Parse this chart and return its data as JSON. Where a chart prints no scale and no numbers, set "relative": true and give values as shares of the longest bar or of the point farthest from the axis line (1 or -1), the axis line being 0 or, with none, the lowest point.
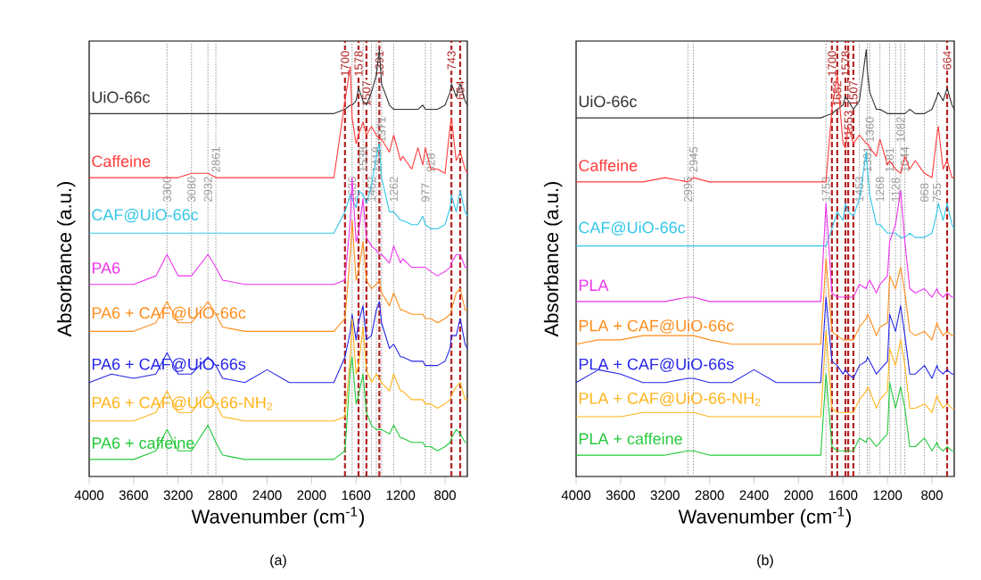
{
  "chart_data": [
    {
      "type": "line",
      "relative": true,
      "xlabel": "Wavenumber (cm$^{-1}$)",
      "ylabel": "Absorbance (a.u.)",
      "xlim": [
        4000,
        600
      ],
      "xticks": [
        4000,
        3600,
        3200,
        2800,
        2400,
        2000,
        1600,
        1200,
        800
      ],
      "x": [
        4000,
        3800,
        3600,
        3400,
        3300,
        3200,
        3080,
        2932,
        2861,
        2800,
        2600,
        2400,
        2200,
        2000,
        1800,
        1700,
        1652,
        1636,
        1600,
        1578,
        1538,
        1507,
        1462,
        1418,
        1391,
        1371,
        1300,
        1262,
        1200,
        1181,
        1100,
        1044,
        1000,
        977,
        928,
        868,
        800,
        755,
        743,
        700,
        664,
        620,
        600
      ],
      "series": [
        {
          "name": "UiO-66c",
          "color": "#333333",
          "values": [
            0.85,
            0.85,
            0.85,
            0.85,
            0.85,
            0.85,
            0.85,
            0.85,
            0.85,
            0.85,
            0.85,
            0.85,
            0.85,
            0.85,
            0.85,
            0.86,
            0.87,
            0.87,
            0.88,
            0.91,
            0.88,
            0.87,
            0.9,
            0.94,
            1.0,
            0.92,
            0.87,
            0.86,
            0.86,
            0.86,
            0.86,
            0.86,
            0.87,
            0.86,
            0.86,
            0.86,
            0.87,
            0.9,
            0.92,
            0.89,
            0.92,
            0.88,
            0.87
          ]
        },
        {
          "name": "Caffeine",
          "color": "#ff3b3b",
          "values": [
            0.7,
            0.7,
            0.7,
            0.7,
            0.7,
            0.7,
            0.71,
            0.71,
            0.7,
            0.7,
            0.7,
            0.7,
            0.7,
            0.7,
            0.7,
            0.88,
            0.96,
            0.84,
            0.78,
            0.8,
            0.83,
            0.8,
            0.82,
            0.8,
            0.79,
            0.79,
            0.76,
            0.8,
            0.74,
            0.75,
            0.72,
            0.77,
            0.73,
            0.77,
            0.72,
            0.72,
            0.71,
            0.82,
            0.84,
            0.74,
            0.76,
            0.72,
            0.71
          ]
        },
        {
          "name": "CAF@UiO-66c",
          "color": "#33c6e8",
          "values": [
            0.57,
            0.57,
            0.57,
            0.57,
            0.57,
            0.57,
            0.57,
            0.57,
            0.57,
            0.57,
            0.57,
            0.57,
            0.57,
            0.57,
            0.57,
            0.62,
            0.66,
            0.65,
            0.63,
            0.67,
            0.66,
            0.64,
            0.68,
            0.75,
            0.78,
            0.7,
            0.62,
            0.62,
            0.6,
            0.6,
            0.59,
            0.59,
            0.61,
            0.59,
            0.58,
            0.58,
            0.59,
            0.63,
            0.66,
            0.62,
            0.67,
            0.62,
            0.61
          ]
        },
        {
          "name": "PA6",
          "color": "#ee33ee",
          "values": [
            0.45,
            0.45,
            0.45,
            0.47,
            0.52,
            0.47,
            0.47,
            0.52,
            0.49,
            0.46,
            0.45,
            0.45,
            0.45,
            0.45,
            0.45,
            0.46,
            0.6,
            0.7,
            0.55,
            0.57,
            0.65,
            0.56,
            0.54,
            0.53,
            0.52,
            0.52,
            0.5,
            0.54,
            0.5,
            0.51,
            0.49,
            0.49,
            0.49,
            0.49,
            0.48,
            0.47,
            0.48,
            0.49,
            0.5,
            0.52,
            0.52,
            0.49,
            0.49
          ]
        },
        {
          "name": "PA6 + CAF@UiO-66c",
          "color": "#ff8c1a",
          "values": [
            0.34,
            0.34,
            0.34,
            0.36,
            0.41,
            0.36,
            0.36,
            0.41,
            0.38,
            0.35,
            0.34,
            0.34,
            0.34,
            0.34,
            0.34,
            0.37,
            0.52,
            0.6,
            0.46,
            0.48,
            0.55,
            0.46,
            0.44,
            0.45,
            0.46,
            0.43,
            0.4,
            0.43,
            0.39,
            0.39,
            0.38,
            0.38,
            0.38,
            0.37,
            0.37,
            0.36,
            0.37,
            0.38,
            0.39,
            0.43,
            0.44,
            0.39,
            0.39
          ]
        },
        {
          "name": "PA6 + CAF@UiO-66s",
          "color": "#2626e8",
          "values": [
            0.22,
            0.24,
            0.23,
            0.24,
            0.29,
            0.24,
            0.24,
            0.28,
            0.26,
            0.23,
            0.22,
            0.25,
            0.22,
            0.22,
            0.22,
            0.28,
            0.34,
            0.38,
            0.32,
            0.36,
            0.4,
            0.32,
            0.33,
            0.39,
            0.41,
            0.36,
            0.3,
            0.31,
            0.28,
            0.28,
            0.27,
            0.27,
            0.27,
            0.26,
            0.26,
            0.26,
            0.27,
            0.3,
            0.33,
            0.33,
            0.37,
            0.31,
            0.3
          ]
        },
        {
          "name": "PA6 + CAF@UiO-66-NH$_{2}$",
          "color": "#ffb319",
          "values": [
            0.13,
            0.13,
            0.13,
            0.15,
            0.2,
            0.15,
            0.15,
            0.2,
            0.17,
            0.14,
            0.13,
            0.13,
            0.13,
            0.13,
            0.13,
            0.14,
            0.28,
            0.37,
            0.24,
            0.26,
            0.35,
            0.25,
            0.22,
            0.24,
            0.23,
            0.22,
            0.2,
            0.24,
            0.2,
            0.2,
            0.18,
            0.18,
            0.18,
            0.17,
            0.17,
            0.16,
            0.17,
            0.18,
            0.19,
            0.21,
            0.22,
            0.18,
            0.18
          ]
        },
        {
          "name": "PA6 + caffeine",
          "color": "#22c93a",
          "values": [
            0.04,
            0.04,
            0.04,
            0.06,
            0.11,
            0.06,
            0.06,
            0.12,
            0.08,
            0.05,
            0.04,
            0.04,
            0.04,
            0.04,
            0.04,
            0.06,
            0.25,
            0.28,
            0.17,
            0.19,
            0.24,
            0.15,
            0.12,
            0.11,
            0.11,
            0.11,
            0.1,
            0.12,
            0.09,
            0.09,
            0.08,
            0.08,
            0.08,
            0.07,
            0.07,
            0.06,
            0.07,
            0.08,
            0.09,
            0.11,
            0.1,
            0.08,
            0.08
          ]
        }
      ],
      "ref_lines": [
        {
          "axis": "x",
          "value": 1700,
          "label": "1700",
          "color": "#b22222",
          "line_style": "dashed"
        },
        {
          "axis": "x",
          "value": 1578,
          "label": "1578",
          "color": "#b22222",
          "line_style": "dashed"
        },
        {
          "axis": "x",
          "value": 1507,
          "label": "1507",
          "color": "#b22222",
          "line_style": "dashed"
        },
        {
          "axis": "x",
          "value": 1391,
          "label": "1391",
          "color": "#b22222",
          "line_style": "dashed"
        },
        {
          "axis": "x",
          "value": 743,
          "label": "743",
          "color": "#b22222",
          "line_style": "dashed"
        },
        {
          "axis": "x",
          "value": 664,
          "label": "664",
          "color": "#b22222",
          "line_style": "dashed"
        },
        {
          "axis": "x",
          "value": 3300,
          "label": "3300",
          "color": "#9a9a9a",
          "line_style": "dotted"
        },
        {
          "axis": "x",
          "value": 3080,
          "label": "3080",
          "color": "#9a9a9a",
          "line_style": "dotted"
        },
        {
          "axis": "x",
          "value": 2932,
          "label": "2932",
          "color": "#9a9a9a",
          "line_style": "dotted"
        },
        {
          "axis": "x",
          "value": 2861,
          "label": "2861",
          "color": "#9a9a9a",
          "line_style": "dotted"
        },
        {
          "axis": "x",
          "value": 1636,
          "label": "1636",
          "color": "#9a9a9a",
          "line_style": "dotted"
        },
        {
          "axis": "x",
          "value": 1538,
          "label": "1538",
          "color": "#9a9a9a",
          "line_style": "dotted"
        },
        {
          "axis": "x",
          "value": 1462,
          "label": "1462",
          "color": "#9a9a9a",
          "line_style": "dotted"
        },
        {
          "axis": "x",
          "value": 1418,
          "label": "1418",
          "color": "#9a9a9a",
          "line_style": "dotted"
        },
        {
          "axis": "x",
          "value": 1371,
          "label": "1371",
          "color": "#9a9a9a",
          "line_style": "dotted"
        },
        {
          "axis": "x",
          "value": 1262,
          "label": "1262",
          "color": "#9a9a9a",
          "line_style": "dotted"
        },
        {
          "axis": "x",
          "value": 977,
          "label": "977",
          "color": "#9a9a9a",
          "line_style": "dotted"
        },
        {
          "axis": "x",
          "value": 928,
          "label": "928",
          "color": "#9a9a9a",
          "line_style": "dotted"
        }
      ],
      "annotations": [
        "(a)"
      ]
    },
    {
      "type": "line",
      "relative": true,
      "xlabel": "Wavenumber (cm$^{-1}$)",
      "ylabel": "Absorbance (a.u.)",
      "xlim": [
        4000,
        600
      ],
      "xticks": [
        4000,
        3600,
        3200,
        2800,
        2400,
        2000,
        1600,
        1200,
        800
      ],
      "x": [
        4000,
        3800,
        3600,
        3400,
        3200,
        2995,
        2945,
        2800,
        2600,
        2400,
        2200,
        2000,
        1800,
        1753,
        1700,
        1652,
        1600,
        1578,
        1553,
        1507,
        1453,
        1391,
        1381,
        1360,
        1300,
        1268,
        1200,
        1181,
        1128,
        1082,
        1044,
        1000,
        950,
        868,
        800,
        755,
        743,
        700,
        664,
        620,
        600
      ],
      "series": [
        {
          "name": "UiO-66c",
          "color": "#333333",
          "values": [
            0.84,
            0.84,
            0.84,
            0.84,
            0.84,
            0.84,
            0.84,
            0.84,
            0.84,
            0.84,
            0.84,
            0.84,
            0.84,
            0.845,
            0.85,
            0.86,
            0.87,
            0.89,
            0.88,
            0.86,
            0.88,
            1.0,
            0.95,
            0.9,
            0.86,
            0.86,
            0.85,
            0.85,
            0.85,
            0.85,
            0.85,
            0.86,
            0.85,
            0.85,
            0.86,
            0.89,
            0.9,
            0.88,
            0.91,
            0.87,
            0.86
          ]
        },
        {
          "name": "Caffeine",
          "color": "#ff3b3b",
          "values": [
            0.69,
            0.69,
            0.69,
            0.69,
            0.7,
            0.69,
            0.7,
            0.69,
            0.69,
            0.69,
            0.69,
            0.69,
            0.69,
            0.69,
            0.86,
            0.94,
            0.78,
            0.77,
            0.82,
            0.78,
            0.8,
            0.78,
            0.78,
            0.77,
            0.75,
            0.79,
            0.73,
            0.74,
            0.72,
            0.71,
            0.75,
            0.72,
            0.74,
            0.71,
            0.7,
            0.8,
            0.82,
            0.72,
            0.74,
            0.7,
            0.7
          ]
        },
        {
          "name": "CAF@UiO-66c",
          "color": "#33c6e8",
          "values": [
            0.54,
            0.54,
            0.54,
            0.54,
            0.54,
            0.54,
            0.54,
            0.54,
            0.54,
            0.54,
            0.54,
            0.54,
            0.54,
            0.54,
            0.58,
            0.62,
            0.6,
            0.64,
            0.62,
            0.61,
            0.65,
            0.76,
            0.72,
            0.66,
            0.59,
            0.59,
            0.57,
            0.57,
            0.57,
            0.56,
            0.56,
            0.57,
            0.56,
            0.56,
            0.57,
            0.62,
            0.64,
            0.6,
            0.64,
            0.59,
            0.58
          ]
        },
        {
          "name": "PLA",
          "color": "#ee33ee",
          "values": [
            0.41,
            0.41,
            0.41,
            0.41,
            0.41,
            0.42,
            0.42,
            0.41,
            0.41,
            0.41,
            0.41,
            0.41,
            0.41,
            0.64,
            0.43,
            0.42,
            0.42,
            0.42,
            0.42,
            0.42,
            0.45,
            0.44,
            0.45,
            0.46,
            0.43,
            0.45,
            0.47,
            0.55,
            0.59,
            0.67,
            0.55,
            0.44,
            0.43,
            0.44,
            0.42,
            0.44,
            0.43,
            0.42,
            0.43,
            0.42,
            0.42
          ]
        },
        {
          "name": "PLA + CAF@UiO-66c",
          "color": "#ff8c1a",
          "values": [
            0.31,
            0.32,
            0.32,
            0.33,
            0.33,
            0.33,
            0.33,
            0.32,
            0.31,
            0.31,
            0.31,
            0.31,
            0.31,
            0.51,
            0.34,
            0.33,
            0.32,
            0.32,
            0.32,
            0.32,
            0.35,
            0.37,
            0.38,
            0.37,
            0.33,
            0.35,
            0.36,
            0.47,
            0.44,
            0.49,
            0.43,
            0.34,
            0.33,
            0.34,
            0.32,
            0.36,
            0.35,
            0.33,
            0.34,
            0.33,
            0.33
          ]
        },
        {
          "name": "PLA + CAF@UiO-66s",
          "color": "#2626e8",
          "values": [
            0.22,
            0.25,
            0.24,
            0.22,
            0.22,
            0.23,
            0.23,
            0.22,
            0.22,
            0.25,
            0.22,
            0.22,
            0.22,
            0.42,
            0.27,
            0.26,
            0.24,
            0.25,
            0.24,
            0.23,
            0.26,
            0.27,
            0.28,
            0.27,
            0.24,
            0.25,
            0.27,
            0.38,
            0.34,
            0.4,
            0.33,
            0.24,
            0.24,
            0.26,
            0.23,
            0.26,
            0.25,
            0.24,
            0.25,
            0.24,
            0.24
          ]
        },
        {
          "name": "PLA + CAF@UiO-66-NH$_{2}$",
          "color": "#ffb319",
          "values": [
            0.14,
            0.14,
            0.14,
            0.15,
            0.15,
            0.15,
            0.15,
            0.14,
            0.14,
            0.14,
            0.14,
            0.14,
            0.14,
            0.34,
            0.16,
            0.15,
            0.15,
            0.15,
            0.15,
            0.15,
            0.18,
            0.2,
            0.21,
            0.2,
            0.16,
            0.18,
            0.2,
            0.3,
            0.26,
            0.32,
            0.26,
            0.16,
            0.16,
            0.17,
            0.15,
            0.19,
            0.18,
            0.16,
            0.17,
            0.16,
            0.16
          ]
        },
        {
          "name": "PLA + caffeine",
          "color": "#22c93a",
          "values": [
            0.05,
            0.05,
            0.05,
            0.05,
            0.05,
            0.06,
            0.06,
            0.05,
            0.05,
            0.05,
            0.05,
            0.05,
            0.05,
            0.24,
            0.07,
            0.06,
            0.06,
            0.06,
            0.06,
            0.06,
            0.09,
            0.08,
            0.09,
            0.09,
            0.07,
            0.08,
            0.1,
            0.22,
            0.16,
            0.21,
            0.16,
            0.07,
            0.07,
            0.09,
            0.06,
            0.08,
            0.07,
            0.06,
            0.07,
            0.06,
            0.06
          ]
        }
      ],
      "ref_lines": [
        {
          "axis": "x",
          "value": 1700,
          "label": "1700",
          "color": "#b22222",
          "line_style": "dashed"
        },
        {
          "axis": "x",
          "value": 1652,
          "label": "1652",
          "color": "#b22222",
          "line_style": "dashed"
        },
        {
          "axis": "x",
          "value": 1578,
          "label": "1578",
          "color": "#b22222",
          "line_style": "dashed"
        },
        {
          "axis": "x",
          "value": 1553,
          "label": "1553",
          "color": "#b22222",
          "line_style": "dashed"
        },
        {
          "axis": "x",
          "value": 1507,
          "label": "1507",
          "color": "#b22222",
          "line_style": "dashed"
        },
        {
          "axis": "x",
          "value": 664,
          "label": "664",
          "color": "#b22222",
          "line_style": "dashed"
        },
        {
          "axis": "x",
          "value": 2995,
          "label": "2995",
          "color": "#9a9a9a",
          "line_style": "dotted"
        },
        {
          "axis": "x",
          "value": 2945,
          "label": "2945",
          "color": "#9a9a9a",
          "line_style": "dotted"
        },
        {
          "axis": "x",
          "value": 1753,
          "label": "1753",
          "color": "#9a9a9a",
          "line_style": "dotted"
        },
        {
          "axis": "x",
          "value": 1453,
          "label": "1453",
          "color": "#9a9a9a",
          "line_style": "dotted"
        },
        {
          "axis": "x",
          "value": 1381,
          "label": "1381",
          "color": "#9a9a9a",
          "line_style": "dotted"
        },
        {
          "axis": "x",
          "value": 1360,
          "label": "1360",
          "color": "#9a9a9a",
          "line_style": "dotted"
        },
        {
          "axis": "x",
          "value": 1268,
          "label": "1268",
          "color": "#9a9a9a",
          "line_style": "dotted"
        },
        {
          "axis": "x",
          "value": 1181,
          "label": "1181",
          "color": "#9a9a9a",
          "line_style": "dotted"
        },
        {
          "axis": "x",
          "value": 1128,
          "label": "1128",
          "color": "#9a9a9a",
          "line_style": "dotted"
        },
        {
          "axis": "x",
          "value": 1082,
          "label": "1082",
          "color": "#9a9a9a",
          "line_style": "dotted"
        },
        {
          "axis": "x",
          "value": 1044,
          "label": "1044",
          "color": "#9a9a9a",
          "line_style": "dotted"
        },
        {
          "axis": "x",
          "value": 868,
          "label": "868",
          "color": "#9a9a9a",
          "line_style": "dotted"
        },
        {
          "axis": "x",
          "value": 755,
          "label": "755",
          "color": "#9a9a9a",
          "line_style": "dotted"
        }
      ],
      "annotations": [
        "(b)"
      ]
    }
  ]
}
